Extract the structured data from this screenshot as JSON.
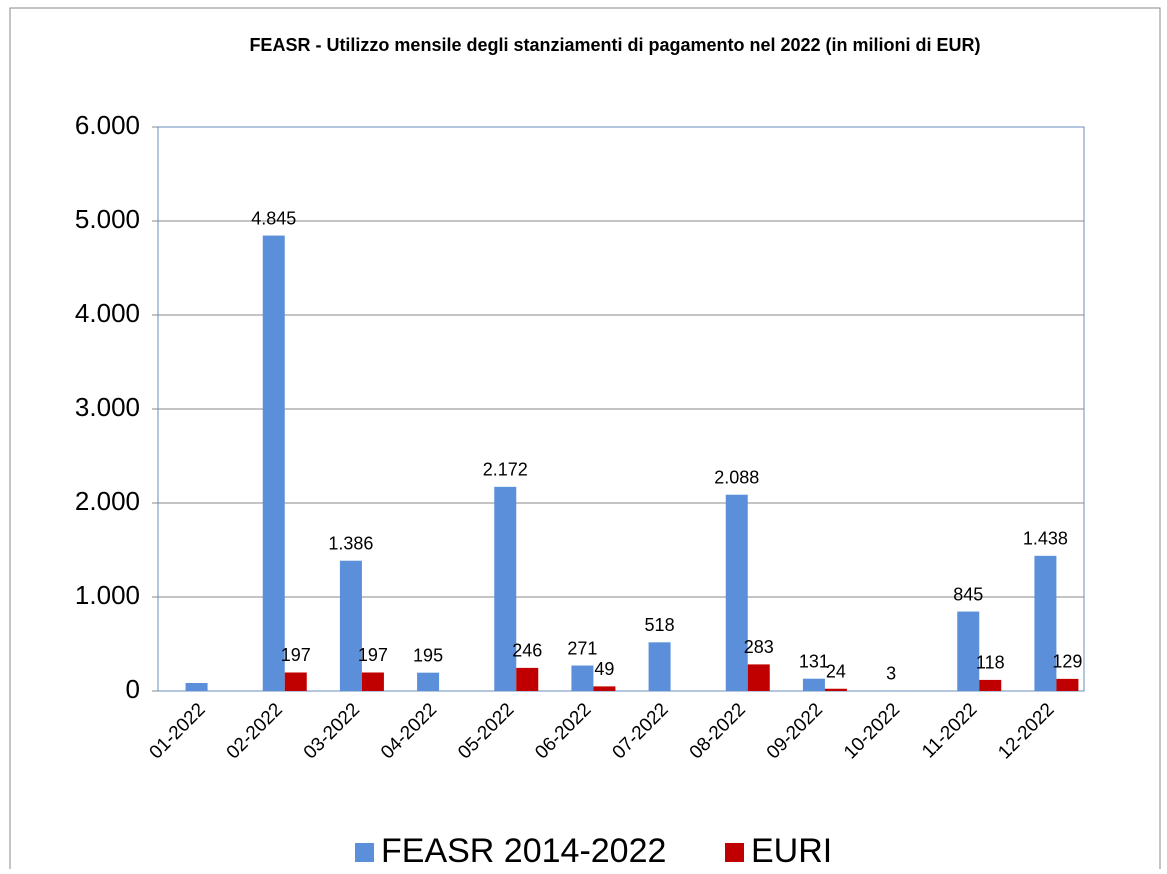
{
  "chart_data": {
    "type": "bar",
    "title": "FEASR - Utilizzo mensile degli stanziamenti di pagamento nel 2022 (in milioni di EUR)",
    "categories": [
      "01-2022",
      "02-2022",
      "03-2022",
      "04-2022",
      "05-2022",
      "06-2022",
      "07-2022",
      "08-2022",
      "09-2022",
      "10-2022",
      "11-2022",
      "12-2022"
    ],
    "series": [
      {
        "name": "FEASR 2014-2022",
        "color": "#5b8fd9",
        "values": [
          85,
          4845,
          1386,
          195,
          2172,
          271,
          518,
          2088,
          131,
          3,
          845,
          1438
        ],
        "value_labels": [
          null,
          "4.845",
          "1.386",
          "195",
          "2.172",
          "271",
          "518",
          "2.088",
          "131",
          "3",
          "845",
          "1.438"
        ]
      },
      {
        "name": "EURI",
        "color": "#c00000",
        "values": [
          null,
          197,
          197,
          null,
          246,
          49,
          null,
          283,
          24,
          null,
          118,
          129
        ],
        "value_labels": [
          null,
          "197",
          "197",
          null,
          "246",
          "49",
          null,
          "283",
          "24",
          null,
          "118",
          "129"
        ]
      }
    ],
    "ylim": [
      0,
      6000
    ],
    "yticks": [
      0,
      {
        "value": 1000,
        "label": "1.000"
      },
      {
        "value": 2000,
        "label": "2.000"
      },
      {
        "value": 3000,
        "label": "3.000"
      },
      {
        "value": 4000,
        "label": "4.000"
      },
      {
        "value": 5000,
        "label": "5.000"
      },
      {
        "value": 6000,
        "label": "6.000"
      }
    ],
    "grid": true,
    "legend": "bottom"
  }
}
